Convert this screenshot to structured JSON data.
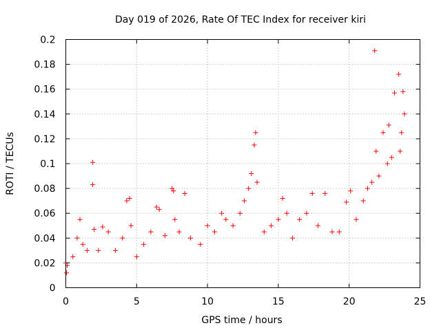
{
  "chart_data": {
    "type": "scatter",
    "title": "Day 019 of 2026, Rate Of TEC Index for receiver kiri",
    "xlabel": "GPS time / hours",
    "ylabel": "ROTI / TECUs",
    "xlim": [
      0,
      25
    ],
    "ylim": [
      0,
      0.2
    ],
    "xticks": [
      0,
      5,
      10,
      15,
      20,
      25
    ],
    "yticks": [
      0,
      0.02,
      0.04,
      0.06,
      0.08,
      0.1,
      0.12,
      0.14,
      0.16,
      0.18,
      0.2
    ],
    "grid": true,
    "marker": "+",
    "color": "#ff0000",
    "series": [
      {
        "name": "ROTI",
        "x": [
          0.0,
          0.05,
          0.1,
          0.5,
          0.8,
          1.0,
          1.2,
          1.5,
          1.9,
          1.9,
          2.0,
          2.3,
          2.6,
          3.0,
          3.5,
          4.0,
          4.3,
          4.5,
          4.6,
          5.0,
          5.5,
          6.0,
          6.4,
          6.6,
          7.0,
          7.5,
          7.6,
          7.7,
          8.0,
          8.4,
          8.8,
          9.5,
          10.0,
          10.5,
          11.0,
          11.3,
          11.8,
          12.3,
          12.6,
          12.9,
          13.1,
          13.3,
          13.4,
          13.5,
          14.0,
          14.5,
          15.0,
          15.3,
          15.6,
          16.0,
          16.5,
          17.0,
          17.4,
          17.8,
          18.3,
          18.8,
          19.3,
          19.8,
          20.1,
          20.5,
          21.0,
          21.3,
          21.6,
          21.8,
          21.9,
          22.1,
          22.4,
          22.7,
          22.8,
          23.0,
          23.2,
          23.5,
          23.6,
          23.7,
          23.8,
          23.9
        ],
        "y": [
          0.02,
          0.012,
          0.018,
          0.025,
          0.04,
          0.055,
          0.035,
          0.03,
          0.101,
          0.083,
          0.047,
          0.03,
          0.049,
          0.045,
          0.03,
          0.04,
          0.07,
          0.072,
          0.05,
          0.025,
          0.035,
          0.045,
          0.065,
          0.063,
          0.042,
          0.08,
          0.078,
          0.055,
          0.045,
          0.076,
          0.04,
          0.035,
          0.05,
          0.045,
          0.06,
          0.055,
          0.05,
          0.06,
          0.07,
          0.08,
          0.092,
          0.115,
          0.125,
          0.085,
          0.045,
          0.05,
          0.055,
          0.072,
          0.06,
          0.04,
          0.055,
          0.06,
          0.076,
          0.05,
          0.076,
          0.045,
          0.045,
          0.069,
          0.078,
          0.055,
          0.07,
          0.08,
          0.085,
          0.191,
          0.11,
          0.09,
          0.125,
          0.1,
          0.131,
          0.105,
          0.157,
          0.172,
          0.11,
          0.125,
          0.158,
          0.14
        ]
      }
    ]
  }
}
